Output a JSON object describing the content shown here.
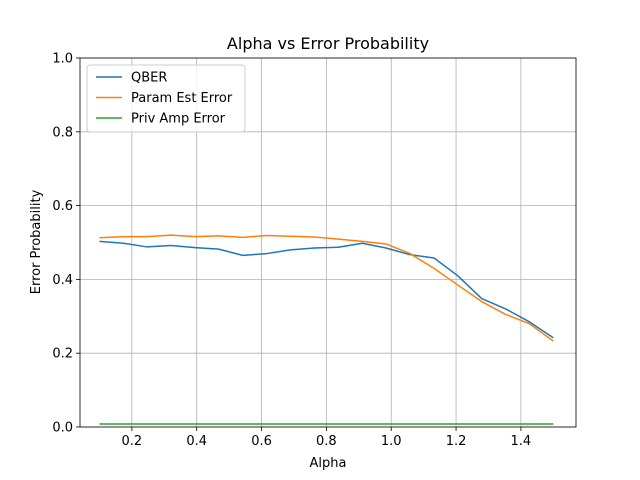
{
  "chart_data": {
    "type": "line",
    "title": "Alpha vs Error Probability",
    "xlabel": "Alpha",
    "ylabel": "Error Probability",
    "xlim": [
      0.04,
      1.57
    ],
    "ylim": [
      0.0,
      1.0
    ],
    "xticks": [
      0.2,
      0.4,
      0.6,
      0.8,
      1.0,
      1.2,
      1.4
    ],
    "yticks": [
      0.0,
      0.2,
      0.4,
      0.6,
      0.8,
      1.0
    ],
    "xtick_labels": [
      "0.2",
      "0.4",
      "0.6",
      "0.8",
      "1.0",
      "1.2",
      "1.4"
    ],
    "ytick_labels": [
      "0.0",
      "0.2",
      "0.4",
      "0.6",
      "0.8",
      "1.0"
    ],
    "grid": true,
    "legend_position": "top-left",
    "x": [
      0.1,
      0.174,
      0.247,
      0.321,
      0.395,
      0.468,
      0.542,
      0.616,
      0.689,
      0.763,
      0.837,
      0.911,
      0.984,
      1.058,
      1.132,
      1.205,
      1.279,
      1.353,
      1.426,
      1.5
    ],
    "series": [
      {
        "name": "QBER",
        "color": "#1f77b4",
        "values": [
          0.503,
          0.498,
          0.488,
          0.492,
          0.486,
          0.482,
          0.465,
          0.47,
          0.48,
          0.485,
          0.487,
          0.498,
          0.485,
          0.467,
          0.458,
          0.41,
          0.348,
          0.32,
          0.285,
          0.242
        ]
      },
      {
        "name": "Param Est Error",
        "color": "#ff7f0e",
        "values": [
          0.513,
          0.516,
          0.516,
          0.52,
          0.516,
          0.518,
          0.514,
          0.519,
          0.517,
          0.515,
          0.509,
          0.503,
          0.496,
          0.47,
          0.43,
          0.385,
          0.34,
          0.305,
          0.28,
          0.233
        ]
      },
      {
        "name": "Priv Amp Error",
        "color": "#2ca02c",
        "values": [
          0.008,
          0.008,
          0.008,
          0.008,
          0.008,
          0.008,
          0.008,
          0.008,
          0.008,
          0.008,
          0.008,
          0.008,
          0.008,
          0.008,
          0.008,
          0.008,
          0.008,
          0.008,
          0.008,
          0.008
        ]
      }
    ]
  }
}
